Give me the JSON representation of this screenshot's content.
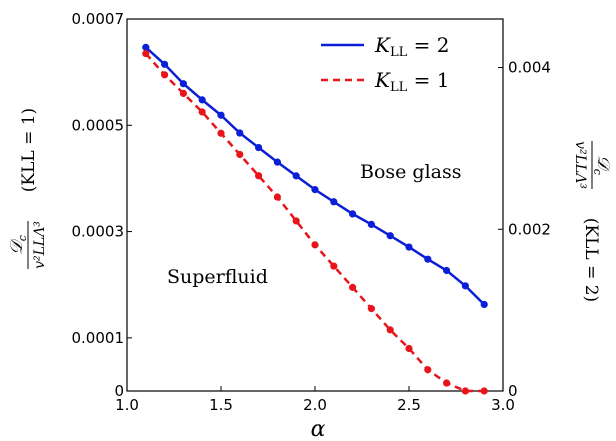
{
  "chart_data": {
    "type": "line",
    "xlabel": "α",
    "xlim": [
      1.0,
      3.0
    ],
    "x_ticks": [
      "1.0",
      "1.5",
      "2.0",
      "2.5",
      "3.0"
    ],
    "left_axis": {
      "label_fraction_num": "𝒟",
      "label_fraction_num_sub": "c",
      "label_fraction_den": "v²LLΛ³",
      "label_condition": "(KLL = 1)",
      "ylim": [
        0,
        0.0007
      ],
      "ticks": [
        {
          "value": 0.0007,
          "label": "0.0007"
        },
        {
          "value": 0.0005,
          "label": "0.0005"
        },
        {
          "value": 0.0003,
          "label": "0.0003"
        },
        {
          "value": 0.0001,
          "label": "0.0001"
        },
        {
          "value": 0,
          "label": "0"
        }
      ]
    },
    "right_axis": {
      "label_fraction_num": "𝒟",
      "label_fraction_num_sub": "c",
      "label_fraction_den": "v²LLΛ³",
      "label_condition": "(KLL = 2)",
      "ylim": [
        0,
        0.0046
      ],
      "ticks": [
        {
          "value": 0.004,
          "label": "0.004"
        },
        {
          "value": 0.002,
          "label": "0.002"
        },
        {
          "value": 0,
          "label": "0"
        }
      ]
    },
    "series": [
      {
        "name": "KLL = 2",
        "axis": "right",
        "color": "#0a1fd6",
        "style": "solid",
        "x": [
          1.1,
          1.2,
          1.3,
          1.4,
          1.5,
          1.6,
          1.7,
          1.8,
          1.9,
          2.0,
          2.1,
          2.2,
          2.3,
          2.4,
          2.5,
          2.6,
          2.7,
          2.8,
          2.9
        ],
        "y": [
          0.00425,
          0.00404,
          0.0038,
          0.0036,
          0.00341,
          0.00319,
          0.00301,
          0.00283,
          0.00266,
          0.00249,
          0.00234,
          0.00219,
          0.00206,
          0.00192,
          0.00178,
          0.00163,
          0.00149,
          0.0013,
          0.00107
        ]
      },
      {
        "name": "KLL = 1",
        "axis": "left",
        "color": "#e8141b",
        "style": "dashed",
        "x": [
          1.1,
          1.2,
          1.3,
          1.4,
          1.5,
          1.6,
          1.7,
          1.8,
          1.9,
          2.0,
          2.1,
          2.2,
          2.3,
          2.4,
          2.5,
          2.6,
          2.7,
          2.8,
          2.9
        ],
        "y": [
          0.000635,
          0.000595,
          0.00056,
          0.000525,
          0.000485,
          0.000445,
          0.000405,
          0.000365,
          0.00032,
          0.000275,
          0.000235,
          0.000195,
          0.000155,
          0.000115,
          8e-05,
          4e-05,
          1.5e-05,
          0.0,
          0.0
        ]
      }
    ],
    "legend": {
      "placement": "top-right",
      "entries": [
        {
          "series": "KLL = 2",
          "text_main": "K",
          "text_sub": "LL",
          "text_rest": " = 2"
        },
        {
          "series": "KLL = 1",
          "text_main": "K",
          "text_sub": "LL",
          "text_rest": " = 1"
        }
      ]
    },
    "annotations": [
      {
        "id": "bose-glass",
        "text": "Bose glass"
      },
      {
        "id": "superfluid",
        "text": "Superfluid"
      }
    ],
    "grid": false
  }
}
